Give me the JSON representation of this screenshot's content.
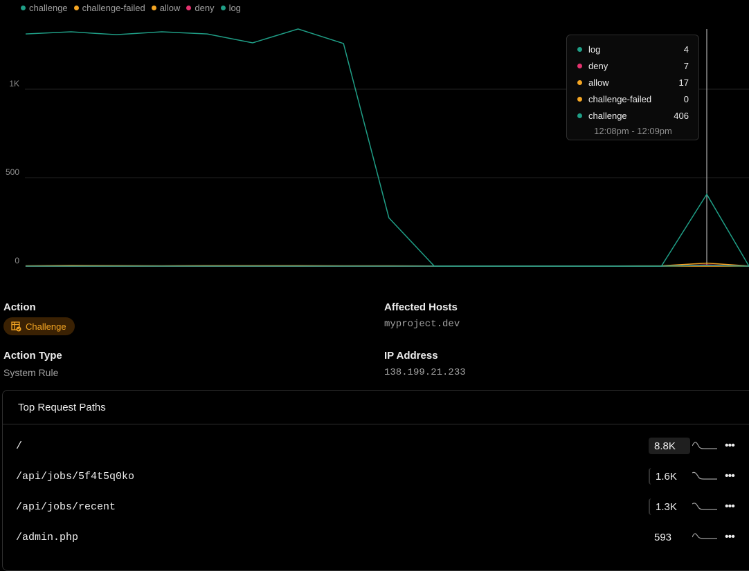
{
  "chart_data": {
    "type": "line",
    "yticks": [
      "0",
      "500",
      "1K"
    ],
    "ytick_values": [
      0,
      500,
      1000
    ],
    "ylim": [
      0,
      1450
    ],
    "grid": true,
    "legend_position": "top-left",
    "series": [
      {
        "name": "challenge",
        "color": "#1f9e86",
        "values": [
          1312,
          1324,
          1308,
          1324,
          1312,
          1262,
          1340,
          1258,
          273,
          0,
          0,
          0,
          0,
          0,
          0,
          406,
          0
        ]
      },
      {
        "name": "challenge-failed",
        "color": "#f5a623",
        "values": [
          0,
          0,
          0,
          0,
          0,
          0,
          0,
          0,
          0,
          0,
          0,
          0,
          0,
          0,
          0,
          0,
          0
        ]
      },
      {
        "name": "allow",
        "color": "#f5a623",
        "values": [
          2,
          4,
          3,
          2,
          3,
          3,
          3,
          2,
          2,
          1,
          1,
          1,
          1,
          1,
          2,
          17,
          1
        ]
      },
      {
        "name": "deny",
        "color": "#e5326f",
        "values": [
          0,
          0,
          0,
          0,
          0,
          0,
          0,
          0,
          0,
          0,
          0,
          0,
          0,
          0,
          0,
          7,
          0
        ]
      },
      {
        "name": "log",
        "color": "#1f9e86",
        "values": [
          0,
          0,
          0,
          0,
          0,
          0,
          0,
          0,
          0,
          0,
          0,
          0,
          0,
          0,
          0,
          4,
          0
        ]
      }
    ],
    "tooltip": {
      "index": 15,
      "rows": [
        {
          "name": "log",
          "value": "4",
          "color": "#1f9e86"
        },
        {
          "name": "deny",
          "value": "7",
          "color": "#e5326f"
        },
        {
          "name": "allow",
          "value": "17",
          "color": "#f5a623"
        },
        {
          "name": "challenge-failed",
          "value": "0",
          "color": "#f5a623"
        },
        {
          "name": "challenge",
          "value": "406",
          "color": "#1f9e86"
        }
      ],
      "time": "12:08pm - 12:09pm"
    }
  },
  "details": {
    "action_label": "Action",
    "action_value": "Challenge",
    "action_icon": "table-check-icon",
    "hosts_label": "Affected Hosts",
    "hosts_value": "myproject.dev",
    "type_label": "Action Type",
    "type_value": "System Rule",
    "ip_label": "IP Address",
    "ip_value": "138.199.21.233"
  },
  "paths": {
    "title": "Top Request Paths",
    "rows": [
      {
        "path": "/",
        "count": "8.8K",
        "more": "•••"
      },
      {
        "path": "/api/jobs/5f4t5q0ko",
        "count": "1.6K",
        "more": "•••"
      },
      {
        "path": "/api/jobs/recent",
        "count": "1.3K",
        "more": "•••"
      },
      {
        "path": "/admin.php",
        "count": "593",
        "more": "•••"
      }
    ]
  }
}
